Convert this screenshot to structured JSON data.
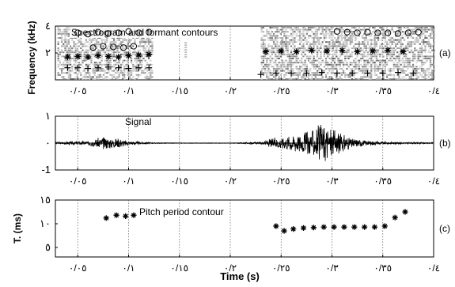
{
  "figure": {
    "xlabel": "Time (s)"
  },
  "chart_data": [
    {
      "type": "heatmap",
      "panel_label": "(a)",
      "title": "Spectrogram and formant contours",
      "ylabel": "Frequency (kHz)",
      "xlim": [
        0.028,
        0.4
      ],
      "ylim": [
        0,
        4
      ],
      "xticks": [
        0.05,
        0.1,
        0.15,
        0.2,
        0.25,
        0.3,
        0.35,
        0.4
      ],
      "xtick_labels": [
        "٠/٠٥",
        "٠/١",
        "٠/١٥",
        "٠/٢",
        "٠/٢٥",
        "٠/٣",
        "٠/٣٥",
        "٠/٤"
      ],
      "yticks": [
        2,
        4
      ],
      "ytick_labels": [
        "٢",
        "٤"
      ],
      "grid": true,
      "voiced_regions": [
        [
          0.03,
          0.123
        ],
        [
          0.23,
          0.4
        ]
      ],
      "series": [
        {
          "marker": "circle",
          "x": [
            0.05,
            0.06,
            0.07,
            0.08,
            0.09,
            0.1,
            0.11,
            0.12,
            0.305,
            0.315,
            0.325,
            0.335,
            0.345,
            0.355,
            0.365,
            0.375,
            0.385
          ],
          "y": [
            3.5,
            3.4,
            3.55,
            3.45,
            3.5,
            3.6,
            3.5,
            3.55,
            3.6,
            3.55,
            3.5,
            3.55,
            3.5,
            3.5,
            3.45,
            3.5,
            3.55
          ]
        },
        {
          "marker": "circle",
          "x": [
            0.065,
            0.075,
            0.085,
            0.095,
            0.105
          ],
          "y": [
            2.4,
            2.5,
            2.45,
            2.4,
            2.5
          ]
        },
        {
          "marker": "star",
          "x": [
            0.04,
            0.05,
            0.06,
            0.07,
            0.08,
            0.09,
            0.1,
            0.11,
            0.12,
            0.235,
            0.25,
            0.265,
            0.28,
            0.295,
            0.31,
            0.325,
            0.34,
            0.355,
            0.37
          ],
          "y": [
            1.7,
            1.75,
            1.7,
            1.8,
            1.75,
            1.7,
            1.8,
            1.85,
            1.9,
            2.1,
            2.15,
            2.1,
            2.2,
            2.15,
            2.2,
            2.1,
            2.15,
            2.2,
            2.1
          ]
        },
        {
          "marker": "plus",
          "x": [
            0.04,
            0.05,
            0.06,
            0.07,
            0.08,
            0.09,
            0.1,
            0.11,
            0.12,
            0.23,
            0.245,
            0.26,
            0.275,
            0.29,
            0.305,
            0.32,
            0.335,
            0.35,
            0.365,
            0.38
          ],
          "y": [
            0.9,
            0.9,
            0.85,
            0.9,
            0.95,
            0.9,
            0.85,
            0.9,
            0.9,
            0.4,
            0.5,
            0.5,
            0.5,
            0.55,
            0.5,
            0.5,
            0.5,
            0.5,
            0.55,
            0.5
          ]
        }
      ]
    },
    {
      "type": "line",
      "panel_label": "(b)",
      "title": "Signal",
      "xlim": [
        0.028,
        0.4
      ],
      "ylim": [
        -1,
        1
      ],
      "xticks": [
        0.05,
        0.1,
        0.15,
        0.2,
        0.25,
        0.3,
        0.35,
        0.4
      ],
      "xtick_labels": [
        "٠/٠٥",
        "٠/١",
        "٠/١٥",
        "٠/٢",
        "٠/٢٥",
        "٠/٣",
        "٠/٣٥",
        "٠/٤"
      ],
      "yticks": [
        -1,
        0,
        1
      ],
      "ytick_labels": [
        "-1",
        "٠",
        "١"
      ],
      "grid": true,
      "envelope": {
        "x": [
          0.028,
          0.04,
          0.06,
          0.075,
          0.085,
          0.09,
          0.1,
          0.11,
          0.123,
          0.15,
          0.2,
          0.23,
          0.24,
          0.26,
          0.27,
          0.28,
          0.29,
          0.295,
          0.3,
          0.31,
          0.32,
          0.33,
          0.35,
          0.4
        ],
        "amp": [
          0.03,
          0.06,
          0.08,
          0.25,
          0.18,
          0.2,
          0.08,
          0.05,
          0.02,
          0.01,
          0.01,
          0.04,
          0.18,
          0.3,
          0.4,
          0.5,
          0.75,
          0.65,
          0.55,
          0.35,
          0.2,
          0.12,
          0.05,
          0.02
        ]
      }
    },
    {
      "type": "scatter",
      "panel_label": "(c)",
      "title": "Pitch period contour",
      "ylabel": "T. (ms)",
      "xlim": [
        0.028,
        0.4
      ],
      "ylim": [
        3,
        15
      ],
      "xticks": [
        0.05,
        0.1,
        0.15,
        0.2,
        0.25,
        0.3,
        0.35,
        0.4
      ],
      "xtick_labels": [
        "٠/٠٥",
        "٠/١",
        "٠/١٥",
        "٠/٢",
        "٠/٢٥",
        "٠/٣",
        "٠/٣٥",
        "٠/٤"
      ],
      "yticks": [
        5,
        10,
        15
      ],
      "ytick_labels": [
        "٥",
        "١٠",
        "١٥"
      ],
      "grid": true,
      "marker": "star",
      "x": [
        0.078,
        0.088,
        0.097,
        0.105,
        0.245,
        0.253,
        0.262,
        0.272,
        0.282,
        0.292,
        0.302,
        0.312,
        0.322,
        0.332,
        0.342,
        0.352,
        0.362,
        0.372
      ],
      "y": [
        11.2,
        11.8,
        11.6,
        11.8,
        9.5,
        8.5,
        8.9,
        9.1,
        9.2,
        9.3,
        9.3,
        9.3,
        9.3,
        9.3,
        9.3,
        9.5,
        11.3,
        12.5
      ]
    }
  ]
}
